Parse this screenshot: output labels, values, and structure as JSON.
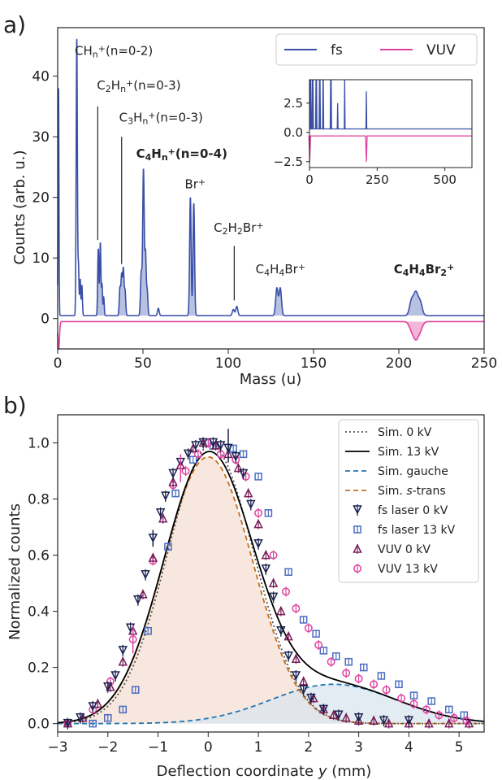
{
  "chart_data": [
    {
      "panel_label": "a)",
      "type": "line",
      "xlabel": "Mass (u)",
      "ylabel": "Counts (arb. u.)",
      "xlim": [
        0,
        250
      ],
      "ylim": [
        -5,
        48
      ],
      "xticks": [
        0,
        50,
        100,
        150,
        200,
        250
      ],
      "yticks": [
        0,
        10,
        20,
        30,
        40
      ],
      "legend": {
        "placement": "top-right",
        "entries": [
          "fs",
          "VUV"
        ]
      },
      "colors": {
        "fs": "#3a4fa8",
        "VUV": "#e040a0",
        "fs_fill": "#9aa6d6",
        "VUV_fill": "#f0a4cf"
      },
      "series": [
        {
          "name": "fs",
          "baseline": 0.5,
          "peaks": [
            [
              0.5,
              37.5,
              0.25
            ],
            [
              11.2,
              45.6,
              0.35
            ],
            [
              12.2,
              8,
              0.3
            ],
            [
              13.2,
              6,
              0.3
            ],
            [
              14.2,
              5,
              0.3
            ],
            [
              23.8,
              11,
              0.35
            ],
            [
              25,
              12,
              0.35
            ],
            [
              26,
              5,
              0.3
            ],
            [
              27,
              3,
              0.3
            ],
            [
              36.5,
              4.5,
              0.4
            ],
            [
              37.5,
              6.5,
              0.4
            ],
            [
              38.5,
              7.5,
              0.4
            ],
            [
              39.5,
              4,
              0.4
            ],
            [
              49,
              7,
              0.45
            ],
            [
              50.3,
              24,
              0.45
            ],
            [
              51.5,
              10,
              0.4
            ],
            [
              52.5,
              4,
              0.4
            ],
            [
              59,
              1.2,
              0.5
            ],
            [
              77.8,
              19.5,
              0.45
            ],
            [
              79.8,
              18.5,
              0.45
            ],
            [
              103,
              1,
              0.6
            ],
            [
              105,
              1.5,
              0.6
            ],
            [
              128.5,
              4.5,
              0.7
            ],
            [
              130.5,
              4.5,
              0.7
            ],
            [
              207.5,
              2.5,
              1.2
            ],
            [
              210,
              3.5,
              1.2
            ],
            [
              212.5,
              2.2,
              1.2
            ]
          ]
        },
        {
          "name": "VUV",
          "baseline": -0.5,
          "peaks": [
            [
              0.6,
              -4.5,
              0.45
            ],
            [
              207.5,
              -1.3,
              1.4
            ],
            [
              210,
              -2.5,
              1.4
            ],
            [
              212.5,
              -1.3,
              1.4
            ]
          ]
        }
      ],
      "annotations": [
        {
          "x": 10,
          "y": 43.5,
          "base": "CH",
          "sub": "n",
          "sup": "+",
          "tail": "(n=0-2)"
        },
        {
          "x": 23,
          "y": 37.8,
          "base": "C",
          "sub": "2",
          "base2": "H",
          "sub2": "n",
          "sup": "+",
          "tail": "(n=0-3)",
          "line_x": 23.5,
          "line_y": [
            13,
            35
          ]
        },
        {
          "x": 36,
          "y": 32.5,
          "base": "C",
          "sub": "3",
          "base2": "H",
          "sub2": "n",
          "sup": "+",
          "tail": "(n=0-3)",
          "line_x": 37.5,
          "line_y": [
            9,
            30
          ]
        },
        {
          "x": 46,
          "y": 26.5,
          "base": "C",
          "sub": "4",
          "base2": "H",
          "sub2": "n",
          "sup": "+",
          "tail": "(n=0-4)",
          "bold": true
        },
        {
          "x": 74.5,
          "y": 21.5,
          "base": "Br",
          "sup": "+"
        },
        {
          "x": 91.5,
          "y": 14.3,
          "base": "C",
          "sub": "2",
          "base2": "H",
          "sub2": "2",
          "base3": "Br",
          "sup": "+",
          "line_x": 103.5,
          "line_y": [
            3,
            12
          ]
        },
        {
          "x": 116,
          "y": 7.5,
          "base": "C",
          "sub": "4",
          "base2": "H",
          "sub2": "4",
          "base3": "Br",
          "sup": "+"
        },
        {
          "x": 197,
          "y": 7.5,
          "base": "C",
          "sub": "4",
          "base2": "H",
          "sub2": "4",
          "base3": "Br",
          "sub3": "2",
          "sup": "+",
          "bold": true
        }
      ],
      "inset": {
        "xlim": [
          0,
          600
        ],
        "ylim": [
          -3,
          4.5
        ],
        "xticks": [
          0,
          250,
          500
        ],
        "yticks": [
          -2.5,
          0.0,
          2.5
        ],
        "ytick_labels": [
          "−2.5",
          "0.0",
          "2.5"
        ],
        "fs_baseline": 0.3,
        "vuv_baseline": -0.3,
        "fs_spikes": [
          [
            2,
            12
          ],
          [
            5,
            8
          ],
          [
            11,
            12
          ],
          [
            13,
            6
          ],
          [
            24,
            12
          ],
          [
            26,
            9
          ],
          [
            37,
            7
          ],
          [
            39,
            6
          ],
          [
            50,
            12
          ],
          [
            51,
            8
          ],
          [
            78,
            12
          ],
          [
            80,
            12
          ],
          [
            104,
            2.5
          ],
          [
            130,
            5
          ],
          [
            210,
            3.5
          ]
        ],
        "vuv_dips": [
          [
            1,
            -2.5
          ],
          [
            210,
            -2.5
          ]
        ]
      }
    },
    {
      "panel_label": "b)",
      "type": "scatter",
      "xlabel": "Deflection coordinate",
      "xlabel_var": "y",
      "xlabel_unit": "(mm)",
      "ylabel": "Normalized counts",
      "xlim": [
        -3,
        5.5
      ],
      "ylim": [
        -0.03,
        1.1
      ],
      "xticks": [
        -3,
        -2,
        -1,
        0,
        1,
        2,
        3,
        4,
        5
      ],
      "xtick_labels": [
        "−3",
        "−2",
        "−1",
        "0",
        "1",
        "2",
        "3",
        "4",
        "5"
      ],
      "yticks": [
        0.0,
        0.2,
        0.4,
        0.6,
        0.8,
        1.0
      ],
      "ytick_labels": [
        "0.0",
        "0.2",
        "0.4",
        "0.6",
        "0.8",
        "1.0"
      ],
      "legend": {
        "placement": "top-right",
        "entries": [
          {
            "label": "Sim. 0 kV"
          },
          {
            "label": "Sim. 13 kV"
          },
          {
            "label": "Sim. gauche"
          },
          {
            "label_pre": "Sim. ",
            "label_it": "s",
            "label_post": "-trans"
          },
          {
            "label": "fs laser 0 kV"
          },
          {
            "label": "fs laser 13 kV"
          },
          {
            "label": "VUV 0 kV"
          },
          {
            "label": "VUV 13 kV"
          }
        ]
      },
      "colors": {
        "sim0": "#555555",
        "sim13": "#000000",
        "gauche": "#1f77b4",
        "strans": "#c86c1a",
        "strans_fill": "#f6e3d8",
        "gauche_fill": "#d9e4ee",
        "fs0": "#1a2350",
        "fs13": "#4a6cc0",
        "vuv0": "#7a1d5a",
        "vuv13": "#e040a0"
      },
      "models": {
        "strans": {
          "amp": 0.95,
          "mu": 0.0,
          "sigma": 0.89
        },
        "gauche": {
          "amp": 0.14,
          "mu": 2.5,
          "sigma": 1.25
        },
        "sim0": {
          "amp": 0.99,
          "mu": 0.05,
          "sigma": 0.87
        }
      },
      "points": {
        "fs_laser_0kV": [
          [
            -2.8,
            0.0
          ],
          [
            -2.55,
            0.02
          ],
          [
            -2.3,
            0.06
          ],
          [
            -2.0,
            0.13
          ],
          [
            -1.85,
            0.17
          ],
          [
            -1.7,
            0.26
          ],
          [
            -1.55,
            0.34
          ],
          [
            -1.4,
            0.44
          ],
          [
            -1.25,
            0.53
          ],
          [
            -1.1,
            0.66
          ],
          [
            -0.95,
            0.75
          ],
          [
            -0.85,
            0.81
          ],
          [
            -0.7,
            0.89
          ],
          [
            -0.55,
            0.93
          ],
          [
            -0.4,
            0.96
          ],
          [
            -0.25,
            0.99
          ],
          [
            -0.1,
            1.0
          ],
          [
            0.1,
            1.0
          ],
          [
            0.25,
            0.99
          ],
          [
            0.4,
            0.98
          ],
          [
            0.55,
            0.95
          ],
          [
            0.7,
            0.89
          ],
          [
            0.85,
            0.78
          ],
          [
            1.0,
            0.64
          ],
          [
            1.15,
            0.55
          ],
          [
            1.3,
            0.45
          ],
          [
            1.45,
            0.33
          ],
          [
            1.6,
            0.24
          ],
          [
            1.75,
            0.17
          ],
          [
            1.9,
            0.12
          ],
          [
            2.05,
            0.09
          ],
          [
            2.3,
            0.05
          ],
          [
            2.6,
            0.03
          ],
          [
            3.0,
            0.02
          ],
          [
            3.5,
            0.01
          ],
          [
            4.0,
            0.01
          ]
        ],
        "fs_laser_13kV": [
          [
            -2.3,
            0.0
          ],
          [
            -2.0,
            0.02
          ],
          [
            -1.7,
            0.05
          ],
          [
            -1.45,
            0.12
          ],
          [
            -1.2,
            0.33
          ],
          [
            -0.8,
            0.63
          ],
          [
            -0.65,
            0.82
          ],
          [
            -0.3,
            0.94
          ],
          [
            0.1,
            0.99
          ],
          [
            0.5,
            0.98
          ],
          [
            0.7,
            0.96
          ],
          [
            1.0,
            0.88
          ],
          [
            1.2,
            0.75
          ],
          [
            1.6,
            0.54
          ],
          [
            1.9,
            0.37
          ],
          [
            2.15,
            0.32
          ],
          [
            2.3,
            0.26
          ],
          [
            2.55,
            0.24
          ],
          [
            2.8,
            0.22
          ],
          [
            3.1,
            0.2
          ],
          [
            3.45,
            0.17
          ],
          [
            3.8,
            0.14
          ],
          [
            4.1,
            0.1
          ],
          [
            4.45,
            0.08
          ],
          [
            4.8,
            0.05
          ],
          [
            5.1,
            0.03
          ]
        ],
        "vuv_0kV": [
          [
            -2.8,
            0.0
          ],
          [
            -2.5,
            0.02
          ],
          [
            -2.2,
            0.07
          ],
          [
            -1.95,
            0.13
          ],
          [
            -1.7,
            0.22
          ],
          [
            -1.5,
            0.33
          ],
          [
            -1.3,
            0.46
          ],
          [
            -1.1,
            0.59
          ],
          [
            -0.9,
            0.73
          ],
          [
            -0.7,
            0.86
          ],
          [
            -0.55,
            0.92
          ],
          [
            -0.3,
            0.98
          ],
          [
            -0.1,
            1.0
          ],
          [
            0.15,
            0.99
          ],
          [
            0.4,
            0.96
          ],
          [
            0.6,
            0.91
          ],
          [
            0.8,
            0.82
          ],
          [
            1.0,
            0.71
          ],
          [
            1.15,
            0.6
          ],
          [
            1.3,
            0.5
          ],
          [
            1.45,
            0.4
          ],
          [
            1.6,
            0.31
          ],
          [
            1.75,
            0.23
          ],
          [
            1.9,
            0.15
          ],
          [
            2.1,
            0.09
          ],
          [
            2.3,
            0.05
          ],
          [
            2.5,
            0.03
          ],
          [
            2.75,
            0.02
          ],
          [
            3.0,
            0.01
          ],
          [
            3.3,
            0.01
          ],
          [
            3.6,
            0.0
          ],
          [
            4.0,
            0.0
          ],
          [
            4.4,
            0.0
          ],
          [
            4.8,
            0.0
          ],
          [
            5.2,
            0.0
          ]
        ],
        "vuv_13kV": [
          [
            -2.8,
            0.0
          ],
          [
            -2.3,
            0.05
          ],
          [
            -1.95,
            0.15
          ],
          [
            -1.5,
            0.3
          ],
          [
            -1.1,
            0.58
          ],
          [
            -0.7,
            0.85
          ],
          [
            -0.45,
            0.9
          ],
          [
            -0.2,
            0.96
          ],
          [
            0.0,
            1.0
          ],
          [
            0.25,
            0.96
          ],
          [
            0.55,
            0.94
          ],
          [
            0.75,
            0.88
          ],
          [
            1.0,
            0.75
          ],
          [
            1.3,
            0.6
          ],
          [
            1.55,
            0.47
          ],
          [
            1.75,
            0.41
          ],
          [
            2.0,
            0.34
          ],
          [
            2.2,
            0.28
          ],
          [
            2.45,
            0.22
          ],
          [
            2.75,
            0.18
          ],
          [
            3.0,
            0.16
          ],
          [
            3.3,
            0.14
          ],
          [
            3.55,
            0.12
          ],
          [
            3.85,
            0.09
          ],
          [
            4.1,
            0.07
          ],
          [
            4.35,
            0.05
          ],
          [
            4.6,
            0.03
          ],
          [
            4.9,
            0.02
          ],
          [
            5.15,
            0.01
          ]
        ]
      },
      "error_points": [
        {
          "series": "fs_laser_0kV",
          "x": 0.4,
          "y": 0.99,
          "err": 0.06
        },
        {
          "series": "vuv_13kV",
          "x": -0.55,
          "y": 0.91,
          "err": 0.05
        },
        {
          "series": "vuv_13kV",
          "x": -1.5,
          "y": 0.3,
          "err": 0.05
        },
        {
          "series": "fs_laser_0kV",
          "x": -1.1,
          "y": 0.66,
          "err": 0.03
        }
      ]
    }
  ]
}
